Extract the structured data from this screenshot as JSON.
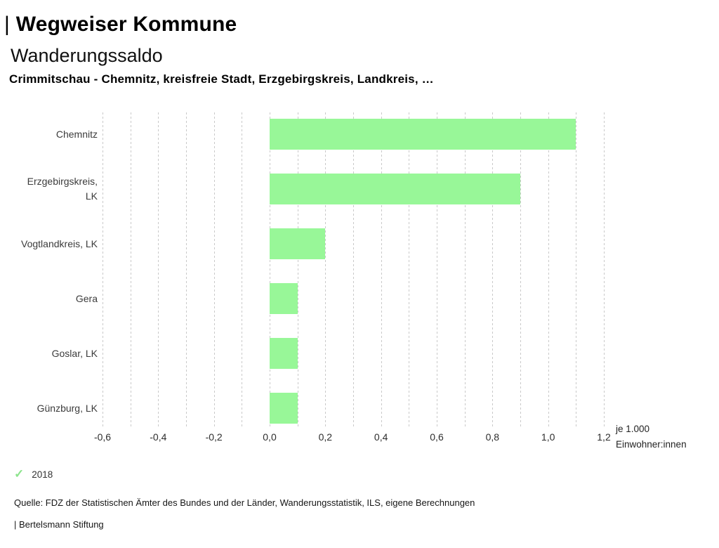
{
  "header": {
    "logo_pipe": "|",
    "title": "Wegweiser Kommune",
    "subtitle": "Wanderungssaldo",
    "context": "Crimmitschau - Chemnitz, kreisfreie Stadt, Erzgebirgskreis, Landkreis, …"
  },
  "chart_data": {
    "type": "bar",
    "orientation": "horizontal",
    "title": "Wanderungssaldo",
    "categories": [
      "Chemnitz",
      "Erzgebirgskreis, LK",
      "Vogtlandkreis, LK",
      "Gera",
      "Goslar, LK",
      "Günzburg, LK"
    ],
    "series": [
      {
        "name": "2018",
        "color": "#98f798",
        "values": [
          1.1,
          0.9,
          0.2,
          0.1,
          0.1,
          0.1
        ]
      }
    ],
    "xlim": [
      -0.6,
      1.2
    ],
    "xticks": [
      -0.6,
      -0.4,
      -0.2,
      0.0,
      0.2,
      0.4,
      0.6,
      0.8,
      1.0,
      1.2
    ],
    "xtick_labels": [
      "-0,6",
      "-0,4",
      "-0,2",
      "0,0",
      "0,2",
      "0,4",
      "0,6",
      "0,8",
      "1,0",
      "1,2"
    ],
    "gridline_step": 0.1,
    "grid": true,
    "xlabel": "je 1.000 Einwohner:innen",
    "ylabel": "",
    "unit_label": [
      "je 1.000",
      "Einwohner:innen"
    ],
    "legend_position": "bottom-left"
  },
  "legend": {
    "check_icon": "✓",
    "label": "2018",
    "check_color": "#8de48d"
  },
  "footer": {
    "source": "Quelle: FDZ der Statistischen Ämter des Bundes und der Länder, Wanderungsstatistik, ILS, eigene Berechnungen",
    "attribution": "| Bertelsmann Stiftung"
  },
  "colors": {
    "bar": "#98f798",
    "grid": "#c9c9c9"
  }
}
